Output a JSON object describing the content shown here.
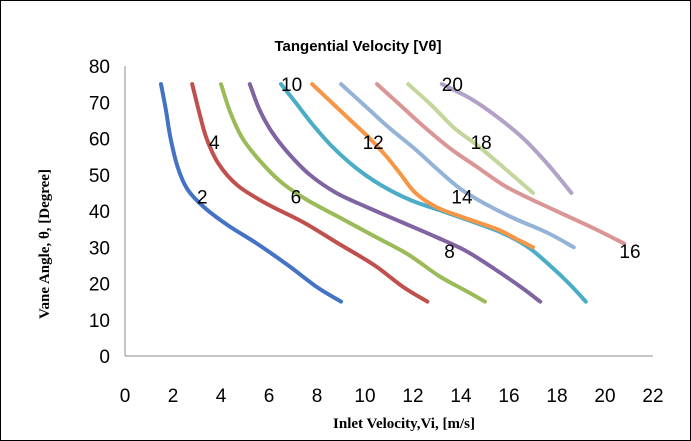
{
  "chart_data": {
    "type": "line",
    "title": "Tangential Velocity [Vθ]",
    "xlabel": "Inlet Velocity,Vi, [m/s]",
    "ylabel": "Vane Angle, θ, [Degree]",
    "xlim": [
      0,
      22
    ],
    "ylim": [
      0,
      80
    ],
    "xticks": [
      "0",
      "2",
      "4",
      "6",
      "8",
      "10",
      "12",
      "14",
      "16",
      "18",
      "20",
      "22"
    ],
    "yticks": [
      "0",
      "10",
      "20",
      "30",
      "40",
      "50",
      "60",
      "70",
      "80"
    ],
    "grid": false,
    "legend": "none",
    "series": [
      {
        "name": "2",
        "color": "#4472c4",
        "label_at": [
          3.0,
          44
        ],
        "points": [
          [
            1.5,
            75
          ],
          [
            1.7,
            68
          ],
          [
            1.9,
            60
          ],
          [
            2.2,
            52
          ],
          [
            2.6,
            46
          ],
          [
            3.3,
            41
          ],
          [
            4.3,
            36
          ],
          [
            5.5,
            31
          ],
          [
            6.8,
            25
          ],
          [
            8.0,
            19
          ],
          [
            9.0,
            15
          ]
        ]
      },
      {
        "name": "4",
        "color": "#c0504d",
        "label_at": [
          3.5,
          59
        ],
        "points": [
          [
            2.8,
            75
          ],
          [
            3.1,
            67
          ],
          [
            3.4,
            60
          ],
          [
            3.9,
            53
          ],
          [
            4.7,
            47
          ],
          [
            5.9,
            42
          ],
          [
            7.4,
            37
          ],
          [
            8.9,
            31
          ],
          [
            10.4,
            25
          ],
          [
            11.6,
            19
          ],
          [
            12.6,
            15
          ]
        ]
      },
      {
        "name": "6",
        "color": "#9bbb59",
        "label_at": [
          6.9,
          44
        ],
        "points": [
          [
            4.0,
            75
          ],
          [
            4.4,
            67
          ],
          [
            4.9,
            60
          ],
          [
            5.6,
            54
          ],
          [
            6.5,
            48
          ],
          [
            7.6,
            43
          ],
          [
            9.0,
            38
          ],
          [
            10.4,
            33
          ],
          [
            11.8,
            28
          ],
          [
            13.1,
            22
          ],
          [
            14.2,
            18
          ],
          [
            15.0,
            15
          ]
        ]
      },
      {
        "name": "8",
        "color": "#8064a2",
        "label_at": [
          13.3,
          29
        ],
        "points": [
          [
            5.2,
            75
          ],
          [
            5.6,
            68
          ],
          [
            6.1,
            62
          ],
          [
            6.8,
            56
          ],
          [
            7.7,
            50
          ],
          [
            8.8,
            45
          ],
          [
            10.1,
            41
          ],
          [
            11.5,
            37
          ],
          [
            12.9,
            33
          ],
          [
            14.2,
            29
          ],
          [
            15.4,
            24
          ],
          [
            16.5,
            19
          ],
          [
            17.3,
            15
          ]
        ]
      },
      {
        "name": "10",
        "color": "#4bacc6",
        "label_at": [
          6.5,
          75
        ],
        "points": [
          [
            6.5,
            75
          ],
          [
            7.1,
            70
          ],
          [
            7.8,
            64
          ],
          [
            8.6,
            58
          ],
          [
            9.6,
            52
          ],
          [
            10.7,
            47
          ],
          [
            11.9,
            43
          ],
          [
            13.2,
            40
          ],
          [
            14.5,
            37
          ],
          [
            15.7,
            34
          ],
          [
            16.8,
            30
          ],
          [
            17.7,
            25
          ],
          [
            18.5,
            20
          ],
          [
            19.2,
            15
          ]
        ]
      },
      {
        "name": "12",
        "color": "#f79646",
        "label_at": [
          9.9,
          59
        ],
        "points": [
          [
            7.8,
            75
          ],
          [
            8.6,
            70
          ],
          [
            9.4,
            65
          ],
          [
            10.2,
            60
          ],
          [
            10.9,
            55
          ],
          [
            11.5,
            50
          ],
          [
            12.1,
            45
          ],
          [
            13.0,
            41
          ],
          [
            14.2,
            38
          ],
          [
            15.5,
            35
          ],
          [
            16.4,
            32
          ],
          [
            17.0,
            30
          ]
        ]
      },
      {
        "name": "14",
        "color": "#95b3d7",
        "label_at": [
          13.6,
          44
        ],
        "points": [
          [
            9.0,
            75
          ],
          [
            10.0,
            69
          ],
          [
            11.0,
            63
          ],
          [
            12.1,
            57
          ],
          [
            13.1,
            51
          ],
          [
            14.0,
            46
          ],
          [
            15.0,
            42
          ],
          [
            16.2,
            38
          ],
          [
            17.6,
            34
          ],
          [
            18.7,
            30
          ]
        ]
      },
      {
        "name": "16",
        "color": "#d99694",
        "label_at": [
          20.6,
          29
        ],
        "points": [
          [
            10.5,
            75
          ],
          [
            11.5,
            69
          ],
          [
            12.5,
            63
          ],
          [
            13.6,
            57
          ],
          [
            14.7,
            52
          ],
          [
            15.8,
            47
          ],
          [
            17.0,
            43
          ],
          [
            18.3,
            39
          ],
          [
            19.6,
            35
          ],
          [
            20.8,
            31
          ]
        ]
      },
      {
        "name": "18",
        "color": "#c3d69b",
        "label_at": [
          14.4,
          59
        ],
        "points": [
          [
            11.8,
            75
          ],
          [
            12.8,
            69
          ],
          [
            13.7,
            63
          ],
          [
            14.7,
            58
          ],
          [
            15.6,
            53
          ],
          [
            16.3,
            49
          ],
          [
            17.0,
            45
          ]
        ]
      },
      {
        "name": "20",
        "color": "#b3a2c7",
        "label_at": [
          13.2,
          75
        ],
        "points": [
          [
            13.2,
            75
          ],
          [
            14.4,
            71
          ],
          [
            15.5,
            66
          ],
          [
            16.6,
            60
          ],
          [
            17.6,
            53
          ],
          [
            18.6,
            45
          ]
        ]
      }
    ]
  }
}
